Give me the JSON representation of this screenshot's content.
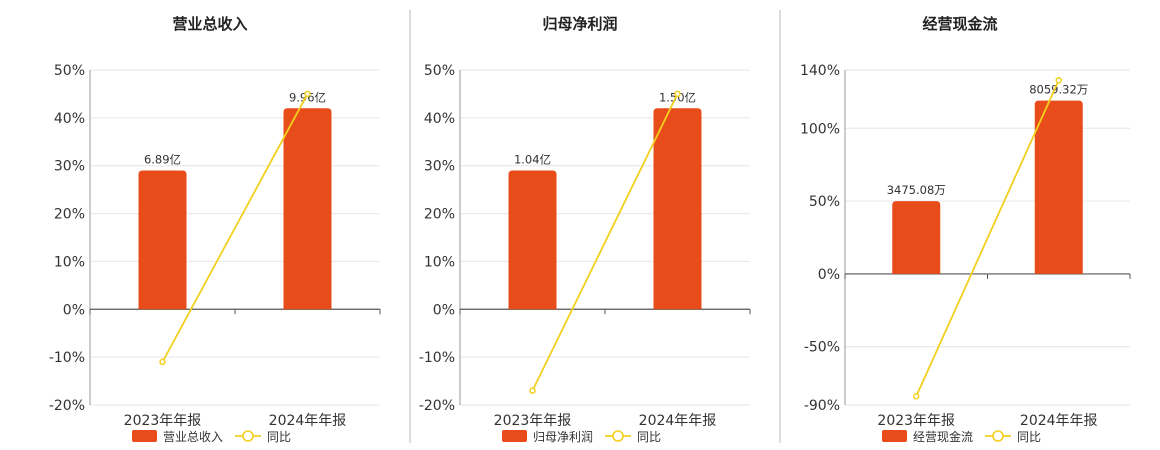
{
  "chart_data": [
    {
      "type": "bar",
      "title": "营业总收入",
      "categories": [
        "2023年年报",
        "2024年年报"
      ],
      "series": [
        {
          "name": "营业总收入",
          "type": "bar",
          "values": [
            29,
            42
          ],
          "labels": [
            "6.89亿",
            "9.96亿"
          ],
          "color": "#e84c1a"
        },
        {
          "name": "同比",
          "type": "line",
          "values": [
            -11,
            45
          ],
          "color": "#f2d01e"
        }
      ],
      "yticks": [
        "50%",
        "40%",
        "30%",
        "20%",
        "10%",
        "0%",
        "-10%",
        "-20%"
      ],
      "ylim": [
        -20,
        50
      ]
    },
    {
      "type": "bar",
      "title": "归母净利润",
      "categories": [
        "2023年年报",
        "2024年年报"
      ],
      "series": [
        {
          "name": "归母净利润",
          "type": "bar",
          "values": [
            29,
            42
          ],
          "labels": [
            "1.04亿",
            "1.50亿"
          ],
          "color": "#e84c1a"
        },
        {
          "name": "同比",
          "type": "line",
          "values": [
            -17,
            45
          ],
          "color": "#f2d01e"
        }
      ],
      "yticks": [
        "50%",
        "40%",
        "30%",
        "20%",
        "10%",
        "0%",
        "-10%",
        "-20%"
      ],
      "ylim": [
        -20,
        50
      ]
    },
    {
      "type": "bar",
      "title": "经营现金流",
      "categories": [
        "2023年年报",
        "2024年年报"
      ],
      "series": [
        {
          "name": "经营现金流",
          "type": "bar",
          "values": [
            50,
            119
          ],
          "labels": [
            "3475.08万",
            "8059.32万"
          ],
          "color": "#e84c1a"
        },
        {
          "name": "同比",
          "type": "line",
          "values": [
            -84,
            133
          ],
          "color": "#f2d01e"
        }
      ],
      "yticks": [
        "140%",
        "100%",
        "50%",
        "0%",
        "-50%",
        "-90%"
      ],
      "ylim": [
        -90,
        140
      ]
    }
  ]
}
